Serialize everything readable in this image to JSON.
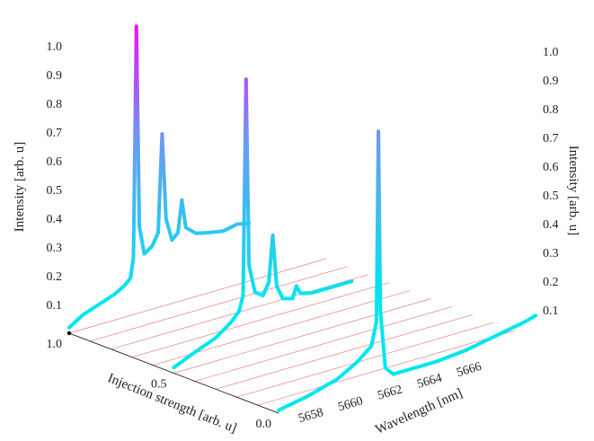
{
  "chart_data": {
    "type": "line",
    "style": "3d-waterfall",
    "xlabel": "Wavelength [nm]",
    "zlabel": "Injection strength [arb. u]",
    "ylabel_left": "Intensity [arb. u]",
    "ylabel_right": "Intensity [arb. u]",
    "x_ticks": [
      "5658",
      "5660",
      "5662",
      "5664",
      "5666"
    ],
    "z_ticks": [
      "0.0",
      "0.5",
      "1.0"
    ],
    "y_ticks": [
      "0.1",
      "0.2",
      "0.3",
      "0.4",
      "0.5",
      "0.6",
      "0.7",
      "0.8",
      "0.9",
      "1.0"
    ],
    "xlim": [
      5656.5,
      5669.5
    ],
    "ylim": [
      0,
      1.0
    ],
    "zlim": [
      0,
      1.0
    ],
    "grid": true,
    "colors": {
      "line_low": "#00e6f0",
      "line_high": "#ff00ff",
      "grid": "#e88080",
      "axis": "#000000"
    },
    "series": [
      {
        "injection": 1.0,
        "points": [
          [
            5656.5,
            0.02
          ],
          [
            5657.2,
            0.05
          ],
          [
            5658.0,
            0.07
          ],
          [
            5658.8,
            0.09
          ],
          [
            5659.3,
            0.11
          ],
          [
            5659.6,
            0.13
          ],
          [
            5659.75,
            0.2
          ],
          [
            5659.9,
            1.0
          ],
          [
            5660.05,
            0.3
          ],
          [
            5660.3,
            0.2
          ],
          [
            5660.7,
            0.22
          ],
          [
            5661.0,
            0.26
          ],
          [
            5661.2,
            0.6
          ],
          [
            5661.4,
            0.3
          ],
          [
            5661.7,
            0.22
          ],
          [
            5662.0,
            0.24
          ],
          [
            5662.2,
            0.35
          ],
          [
            5662.4,
            0.25
          ],
          [
            5662.9,
            0.22
          ],
          [
            5663.5,
            0.21
          ],
          [
            5664.3,
            0.2
          ],
          [
            5665.0,
            0.21
          ],
          [
            5665.6,
            0.2
          ]
        ]
      },
      {
        "injection": 0.5,
        "points": [
          [
            5656.5,
            0.02
          ],
          [
            5657.5,
            0.05
          ],
          [
            5658.6,
            0.08
          ],
          [
            5659.4,
            0.12
          ],
          [
            5659.8,
            0.15
          ],
          [
            5660.0,
            0.2
          ],
          [
            5660.15,
            0.95
          ],
          [
            5660.3,
            0.3
          ],
          [
            5660.6,
            0.2
          ],
          [
            5661.0,
            0.18
          ],
          [
            5661.3,
            0.22
          ],
          [
            5661.5,
            0.38
          ],
          [
            5661.7,
            0.2
          ],
          [
            5662.0,
            0.15
          ],
          [
            5662.5,
            0.14
          ],
          [
            5662.7,
            0.18
          ],
          [
            5662.9,
            0.15
          ],
          [
            5663.5,
            0.14
          ],
          [
            5664.5,
            0.14
          ],
          [
            5665.5,
            0.14
          ]
        ]
      },
      {
        "injection": 0.0,
        "points": [
          [
            5656.5,
            0.01
          ],
          [
            5658.0,
            0.03
          ],
          [
            5659.5,
            0.06
          ],
          [
            5660.5,
            0.1
          ],
          [
            5661.2,
            0.14
          ],
          [
            5661.45,
            0.22
          ],
          [
            5661.55,
            0.88
          ],
          [
            5661.65,
            0.25
          ],
          [
            5661.9,
            0.05
          ],
          [
            5662.3,
            0.02
          ],
          [
            5663.0,
            0.02
          ],
          [
            5664.5,
            0.02
          ],
          [
            5666.0,
            0.03
          ],
          [
            5667.5,
            0.05
          ],
          [
            5669.0,
            0.07
          ],
          [
            5669.5,
            0.08
          ]
        ]
      }
    ]
  }
}
